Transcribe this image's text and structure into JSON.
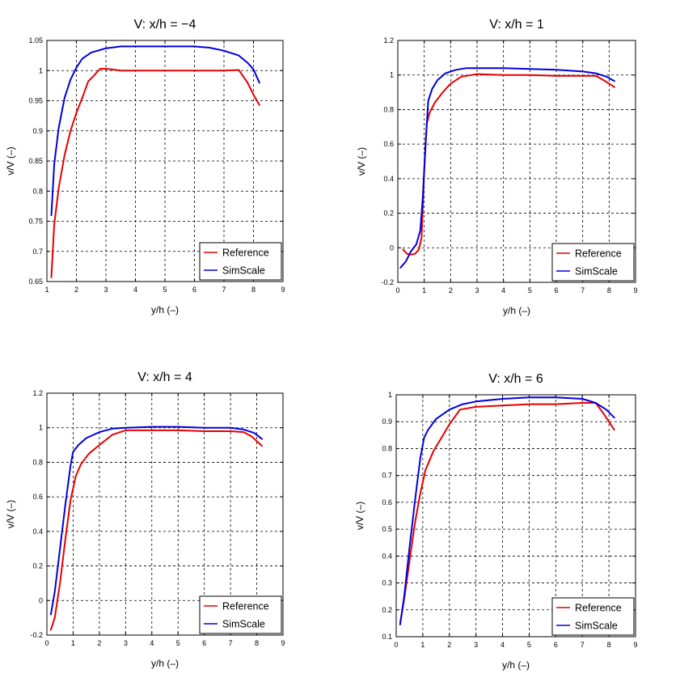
{
  "colors": {
    "Reference": "#e60000",
    "SimScale": "#0000dd"
  },
  "chart_data": [
    {
      "type": "line",
      "title": "V: x/h = −4",
      "xlabel": "y/h (–)",
      "ylabel": "v/V (–)",
      "xlim": [
        1,
        9
      ],
      "ylim": [
        0.65,
        1.05
      ],
      "xticks": [
        "1",
        "2",
        "3",
        "4",
        "5",
        "6",
        "7",
        "8",
        "9"
      ],
      "yticks": [
        "0.65",
        "0.7",
        "0.75",
        "0.8",
        "0.85",
        "0.9",
        "0.95",
        "1",
        "1.05"
      ],
      "legend": "bottom-right",
      "series": [
        {
          "name": "Reference",
          "x": [
            1.15,
            1.25,
            1.4,
            1.6,
            1.8,
            2.0,
            2.2,
            2.4,
            2.6,
            2.8,
            3.0,
            3.2,
            3.5,
            4,
            5,
            6,
            7,
            7.5,
            7.8,
            8.0,
            8.2
          ],
          "y": [
            0.657,
            0.745,
            0.805,
            0.86,
            0.9,
            0.93,
            0.955,
            0.982,
            0.992,
            1.003,
            1.003,
            1.002,
            1.0,
            1.0,
            1.0,
            1.0,
            1.0,
            1.001,
            0.98,
            0.96,
            0.943
          ]
        },
        {
          "name": "SimScale",
          "x": [
            1.15,
            1.25,
            1.4,
            1.6,
            1.8,
            2.0,
            2.2,
            2.5,
            3.0,
            3.5,
            4,
            5,
            6,
            6.5,
            7,
            7.5,
            7.8,
            8.0,
            8.2
          ],
          "y": [
            0.76,
            0.845,
            0.905,
            0.955,
            0.985,
            1.005,
            1.02,
            1.03,
            1.037,
            1.04,
            1.04,
            1.04,
            1.04,
            1.038,
            1.033,
            1.025,
            1.013,
            1.002,
            0.98
          ]
        }
      ]
    },
    {
      "type": "line",
      "title": "V: x/h = 1",
      "xlabel": "y/h (–)",
      "ylabel": "v/V (–)",
      "xlim": [
        0,
        9
      ],
      "ylim": [
        -0.2,
        1.2
      ],
      "xticks": [
        "0",
        "1",
        "2",
        "3",
        "4",
        "5",
        "6",
        "7",
        "8",
        "9"
      ],
      "yticks": [
        "-0.2",
        "0",
        "0.2",
        "0.4",
        "0.6",
        "0.8",
        "1",
        "1.2"
      ],
      "legend": "bottom-right",
      "series": [
        {
          "name": "Reference",
          "x": [
            0.2,
            0.35,
            0.5,
            0.65,
            0.8,
            0.9,
            1.0,
            1.1,
            1.2,
            1.4,
            1.7,
            2.0,
            2.4,
            2.8,
            3.0,
            4,
            5,
            6,
            7,
            7.5,
            7.9,
            8.2
          ],
          "y": [
            -0.01,
            -0.035,
            -0.04,
            -0.035,
            -0.01,
            0.06,
            0.45,
            0.72,
            0.78,
            0.84,
            0.9,
            0.95,
            0.99,
            1.0,
            1.005,
            1.0,
            1.0,
            0.995,
            0.995,
            0.995,
            0.96,
            0.93
          ]
        },
        {
          "name": "SimScale",
          "x": [
            0.1,
            0.3,
            0.5,
            0.7,
            0.85,
            0.95,
            1.05,
            1.15,
            1.3,
            1.5,
            1.8,
            2.2,
            2.6,
            3.0,
            4,
            5,
            6,
            7,
            7.5,
            7.9,
            8.2
          ],
          "y": [
            -0.115,
            -0.08,
            -0.02,
            0.02,
            0.1,
            0.3,
            0.6,
            0.85,
            0.92,
            0.97,
            1.01,
            1.03,
            1.04,
            1.04,
            1.04,
            1.035,
            1.03,
            1.02,
            1.01,
            0.99,
            0.965
          ]
        }
      ]
    },
    {
      "type": "line",
      "title": "V: x/h = 4",
      "xlabel": "y/h (–)",
      "ylabel": "v/V (–)",
      "xlim": [
        0,
        9
      ],
      "ylim": [
        -0.2,
        1.2
      ],
      "xticks": [
        "0",
        "1",
        "2",
        "3",
        "4",
        "5",
        "6",
        "7",
        "8",
        "9"
      ],
      "yticks": [
        "-0.2",
        "0",
        "0.2",
        "0.4",
        "0.6",
        "0.8",
        "1",
        "1.2"
      ],
      "legend": "bottom-right",
      "series": [
        {
          "name": "Reference",
          "x": [
            0.15,
            0.3,
            0.5,
            0.7,
            0.9,
            1.1,
            1.3,
            1.6,
            2.0,
            2.5,
            3.0,
            4,
            5,
            6,
            7,
            7.5,
            7.8,
            8.2
          ],
          "y": [
            -0.17,
            -0.1,
            0.1,
            0.35,
            0.58,
            0.72,
            0.79,
            0.85,
            0.9,
            0.96,
            0.985,
            0.985,
            0.985,
            0.98,
            0.98,
            0.975,
            0.95,
            0.895
          ]
        },
        {
          "name": "SimScale",
          "x": [
            0.15,
            0.3,
            0.5,
            0.7,
            0.9,
            1.0,
            1.2,
            1.5,
            2.0,
            2.5,
            3.0,
            4,
            5,
            6,
            7,
            7.5,
            7.9,
            8.2
          ],
          "y": [
            -0.08,
            0.05,
            0.3,
            0.55,
            0.78,
            0.86,
            0.9,
            0.94,
            0.975,
            0.995,
            1.0,
            1.005,
            1.005,
            1.0,
            1.0,
            0.99,
            0.97,
            0.935
          ]
        }
      ]
    },
    {
      "type": "line",
      "title": "V: x/h = 6",
      "xlabel": "y/h (–)",
      "ylabel": "v/V (–)",
      "xlim": [
        0,
        9
      ],
      "ylim": [
        0.1,
        1.0
      ],
      "xticks": [
        "0",
        "1",
        "2",
        "3",
        "4",
        "5",
        "6",
        "7",
        "8",
        "9"
      ],
      "yticks": [
        "0.1",
        "0.2",
        "0.3",
        "0.4",
        "0.5",
        "0.6",
        "0.7",
        "0.8",
        "0.9",
        "1"
      ],
      "legend": "bottom-right",
      "series": [
        {
          "name": "Reference",
          "x": [
            0.15,
            0.3,
            0.5,
            0.7,
            0.9,
            1.1,
            1.4,
            1.7,
            2.0,
            2.4,
            3.0,
            4,
            5,
            6,
            7,
            7.5,
            7.8,
            8.2
          ],
          "y": [
            0.15,
            0.24,
            0.38,
            0.52,
            0.63,
            0.72,
            0.79,
            0.84,
            0.89,
            0.945,
            0.955,
            0.96,
            0.965,
            0.965,
            0.97,
            0.97,
            0.93,
            0.87
          ]
        },
        {
          "name": "SimScale",
          "x": [
            0.15,
            0.3,
            0.5,
            0.7,
            0.9,
            1.05,
            1.2,
            1.5,
            2.0,
            2.5,
            3.0,
            4,
            5,
            6,
            7,
            7.5,
            7.9,
            8.2
          ],
          "y": [
            0.145,
            0.25,
            0.43,
            0.6,
            0.76,
            0.84,
            0.87,
            0.91,
            0.945,
            0.965,
            0.975,
            0.985,
            0.99,
            0.99,
            0.985,
            0.97,
            0.945,
            0.915
          ]
        }
      ]
    }
  ]
}
